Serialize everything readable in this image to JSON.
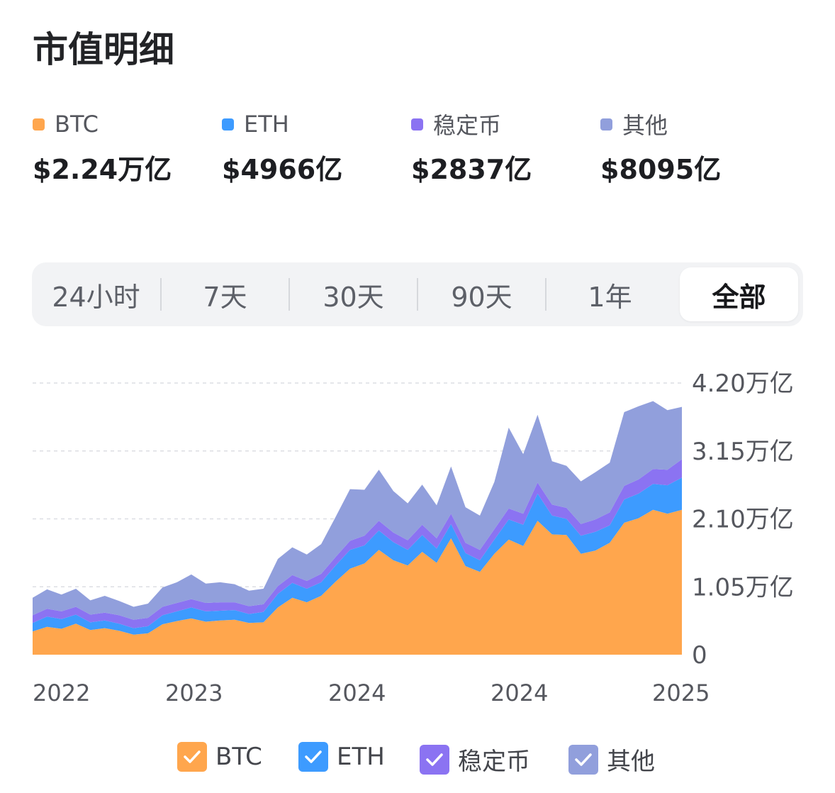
{
  "header": {
    "title": "市值明细"
  },
  "summary": [
    {
      "label": "BTC",
      "value": "$2.24万亿",
      "color": "#ffa64d"
    },
    {
      "label": "ETH",
      "value": "$4966亿",
      "color": "#3d9bff"
    },
    {
      "label": "稳定币",
      "value": "$2837亿",
      "color": "#8b73f2"
    },
    {
      "label": "其他",
      "value": "$8095亿",
      "color": "#919fdc"
    }
  ],
  "tabs": [
    {
      "label": "24小时",
      "active": false
    },
    {
      "label": "7天",
      "active": false
    },
    {
      "label": "30天",
      "active": false
    },
    {
      "label": "90天",
      "active": false
    },
    {
      "label": "1年",
      "active": false
    },
    {
      "label": "全部",
      "active": true
    }
  ],
  "legend": [
    {
      "label": "BTC",
      "checked": true,
      "color": "#ffa64d",
      "icon": "checkmark-icon"
    },
    {
      "label": "ETH",
      "checked": true,
      "color": "#3d9bff",
      "icon": "checkmark-icon"
    },
    {
      "label": "稳定币",
      "checked": true,
      "color": "#8b73f2",
      "icon": "checkmark-icon"
    },
    {
      "label": "其他",
      "checked": true,
      "color": "#919fdc",
      "icon": "checkmark-icon"
    }
  ],
  "chart_data": {
    "type": "area",
    "stacked": true,
    "ylim": [
      0,
      4.2
    ],
    "y_unit": "万亿",
    "yticks": [
      {
        "value": 0,
        "label": "0"
      },
      {
        "value": 1.05,
        "label": "1.05万亿"
      },
      {
        "value": 2.1,
        "label": "2.10万亿"
      },
      {
        "value": 3.15,
        "label": "3.15万亿"
      },
      {
        "value": 4.2,
        "label": "4.20万亿"
      }
    ],
    "x_tick_labels": [
      "2022",
      "2023",
      "2024",
      "2024",
      "2025"
    ],
    "grid": true,
    "legend_position": "bottom",
    "series": [
      {
        "name": "BTC",
        "color": "#ffa64d",
        "values": [
          0.36,
          0.43,
          0.4,
          0.48,
          0.38,
          0.41,
          0.37,
          0.31,
          0.33,
          0.47,
          0.52,
          0.56,
          0.51,
          0.53,
          0.54,
          0.49,
          0.5,
          0.73,
          0.88,
          0.81,
          0.91,
          1.13,
          1.33,
          1.41,
          1.62,
          1.46,
          1.38,
          1.59,
          1.42,
          1.8,
          1.37,
          1.28,
          1.56,
          1.78,
          1.68,
          2.07,
          1.86,
          1.85,
          1.56,
          1.61,
          1.73,
          2.04,
          2.11,
          2.24,
          2.18,
          2.24
        ]
      },
      {
        "name": "ETH",
        "color": "#3d9bff",
        "values": [
          0.13,
          0.16,
          0.15,
          0.14,
          0.12,
          0.12,
          0.11,
          0.1,
          0.11,
          0.14,
          0.15,
          0.17,
          0.16,
          0.15,
          0.15,
          0.14,
          0.16,
          0.21,
          0.23,
          0.21,
          0.21,
          0.25,
          0.29,
          0.28,
          0.3,
          0.28,
          0.24,
          0.26,
          0.22,
          0.22,
          0.2,
          0.18,
          0.22,
          0.31,
          0.33,
          0.42,
          0.29,
          0.25,
          0.28,
          0.29,
          0.27,
          0.36,
          0.38,
          0.4,
          0.44,
          0.497
        ]
      },
      {
        "name": "稳定币",
        "color": "#8b73f2",
        "values": [
          0.12,
          0.12,
          0.12,
          0.12,
          0.12,
          0.12,
          0.13,
          0.13,
          0.13,
          0.13,
          0.13,
          0.13,
          0.13,
          0.13,
          0.12,
          0.12,
          0.12,
          0.12,
          0.12,
          0.12,
          0.13,
          0.13,
          0.14,
          0.15,
          0.15,
          0.15,
          0.15,
          0.16,
          0.16,
          0.16,
          0.16,
          0.16,
          0.16,
          0.17,
          0.17,
          0.17,
          0.17,
          0.17,
          0.18,
          0.19,
          0.2,
          0.21,
          0.22,
          0.23,
          0.24,
          0.284
        ]
      },
      {
        "name": "其他",
        "color": "#919fdc",
        "values": [
          0.27,
          0.3,
          0.26,
          0.28,
          0.22,
          0.26,
          0.22,
          0.2,
          0.22,
          0.3,
          0.32,
          0.38,
          0.3,
          0.31,
          0.28,
          0.24,
          0.24,
          0.42,
          0.43,
          0.41,
          0.46,
          0.62,
          0.8,
          0.71,
          0.79,
          0.64,
          0.57,
          0.62,
          0.51,
          0.73,
          0.55,
          0.53,
          0.73,
          1.25,
          0.92,
          1.05,
          0.67,
          0.65,
          0.66,
          0.73,
          0.77,
          1.14,
          1.13,
          1.05,
          0.92,
          0.81
        ]
      }
    ]
  }
}
